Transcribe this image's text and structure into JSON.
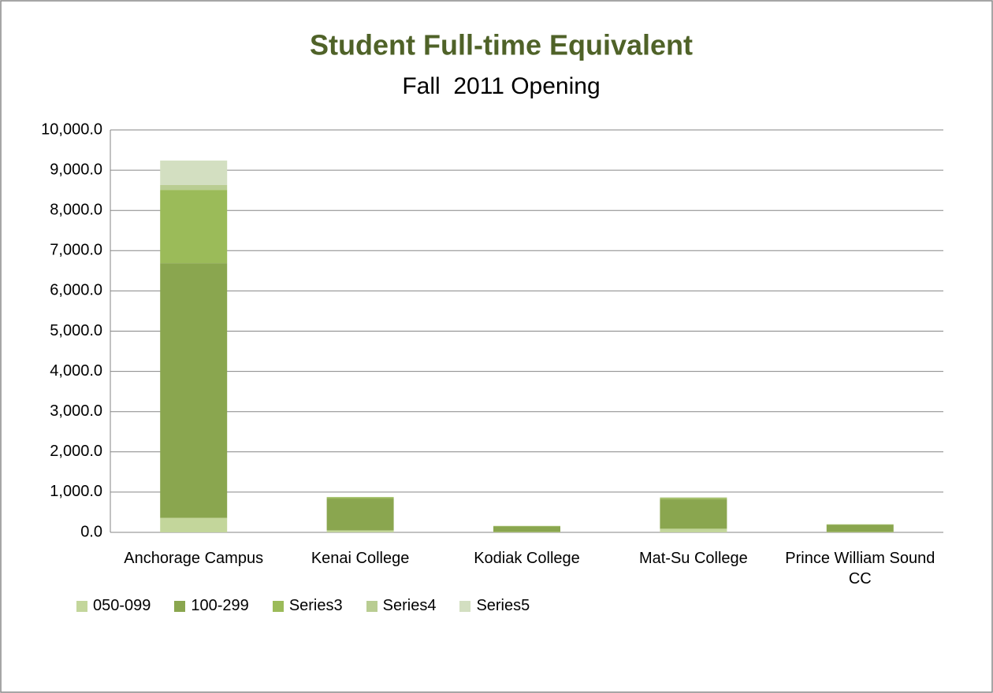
{
  "chart_data": {
    "type": "stacked_bar",
    "title": "Student Full-time Equivalent",
    "subtitle": "Fall  2011 Opening",
    "categories": [
      "Anchorage Campus",
      "Kenai College",
      "Kodiak College",
      "Mat-Su College",
      "Prince William Sound CC"
    ],
    "series": [
      {
        "name": "050-099",
        "color": "#c3d69b",
        "values": [
          360,
          50,
          10,
          90,
          10
        ]
      },
      {
        "name": "100-299",
        "color": "#8aa64f",
        "values": [
          6330,
          790,
          140,
          730,
          180
        ]
      },
      {
        "name": "Series3",
        "color": "#9bbb59",
        "values": [
          1820,
          30,
          10,
          30,
          10
        ]
      },
      {
        "name": "Series4",
        "color": "#b9cd92",
        "values": [
          120,
          10,
          0,
          20,
          0
        ]
      },
      {
        "name": "Series5",
        "color": "#d3dfc1",
        "values": [
          610,
          0,
          0,
          0,
          0
        ]
      }
    ],
    "ylim": [
      0,
      10000
    ],
    "yticks": [
      {
        "value": 0,
        "label": "0.0"
      },
      {
        "value": 1000,
        "label": "1,000.0"
      },
      {
        "value": 2000,
        "label": "2,000.0"
      },
      {
        "value": 3000,
        "label": "3,000.0"
      },
      {
        "value": 4000,
        "label": "4,000.0"
      },
      {
        "value": 5000,
        "label": "5,000.0"
      },
      {
        "value": 6000,
        "label": "6,000.0"
      },
      {
        "value": 7000,
        "label": "7,000.0"
      },
      {
        "value": 8000,
        "label": "8,000.0"
      },
      {
        "value": 9000,
        "label": "9,000.0"
      },
      {
        "value": 10000,
        "label": "10,000.0"
      }
    ],
    "grid": true,
    "legend": "bottom"
  }
}
